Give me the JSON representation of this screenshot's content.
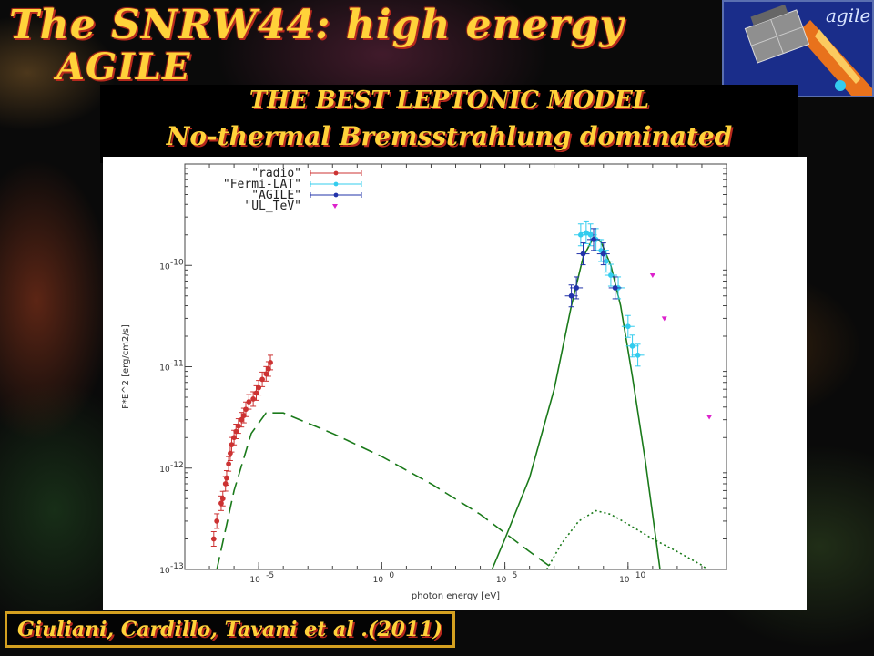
{
  "title": {
    "line1": "The SNRW44: high energy",
    "line2": "AGILE"
  },
  "subtitle": {
    "line1": "THE BEST LEPTONIC MODEL",
    "line2": "No-thermal Bremsstrahlung dominated"
  },
  "citation": "Giuliani, Cardillo, Tavani et al .(2011)",
  "colors": {
    "radio": "#cc3333",
    "fermi": "#33ccee",
    "agile": "#2233aa",
    "ul": "#dd22cc",
    "model": "#1a7a1a"
  },
  "chart_data": {
    "type": "scatter",
    "xlabel": "photon energy [eV]",
    "ylabel": "F*E^2 [erg/cm2/s]",
    "xscale": "log",
    "yscale": "log",
    "xlim": [
      1e-08,
      100000000000000.0
    ],
    "ylim": [
      1e-13,
      1e-09
    ],
    "x_ticks": [
      {
        "v": 1e-05,
        "t": "10"
      },
      {
        "v": 1,
        "t": "10"
      },
      {
        "v": 100000.0,
        "t": "10"
      },
      {
        "v": 10000000000.0,
        "t": "10"
      }
    ],
    "x_tick_exp": [
      "-5",
      "0",
      "5",
      "10"
    ],
    "y_ticks": [
      {
        "v": 1e-13,
        "t": "10"
      },
      {
        "v": 1e-12,
        "t": "10"
      },
      {
        "v": 1e-11,
        "t": "10"
      },
      {
        "v": 1e-10,
        "t": "10"
      }
    ],
    "y_tick_exp": [
      "-13",
      "-12",
      "-11",
      "-10"
    ],
    "legend": [
      "\"radio\"",
      "\"Fermi-LAT\"",
      "\"AGILE\"",
      "\"UL_TeV\""
    ],
    "legend_position": "top-left",
    "series": [
      {
        "name": "\"radio\"",
        "color": "#cc3333",
        "marker": "circle",
        "points": [
          [
            1.5e-07,
            2e-13
          ],
          [
            2e-07,
            3e-13
          ],
          [
            3e-07,
            4.5e-13
          ],
          [
            3.5e-07,
            5e-13
          ],
          [
            4.5e-07,
            7e-13
          ],
          [
            5e-07,
            8e-13
          ],
          [
            6e-07,
            1.1e-12
          ],
          [
            7e-07,
            1.4e-12
          ],
          [
            8e-07,
            1.7e-12
          ],
          [
            1e-06,
            2e-12
          ],
          [
            1.2e-06,
            2.3e-12
          ],
          [
            1.5e-06,
            2.6e-12
          ],
          [
            2e-06,
            3e-12
          ],
          [
            2.5e-06,
            3.3e-12
          ],
          [
            3e-06,
            3.8e-12
          ],
          [
            4e-06,
            4.5e-12
          ],
          [
            6e-06,
            4.8e-12
          ],
          [
            8e-06,
            5.5e-12
          ],
          [
            1e-05,
            6.2e-12
          ],
          [
            1.4e-05,
            7.5e-12
          ],
          [
            2e-05,
            8.5e-12
          ],
          [
            2.5e-05,
            9.5e-12
          ],
          [
            3e-05,
            1.1e-11
          ]
        ]
      },
      {
        "name": "\"Fermi-LAT\"",
        "color": "#33ccee",
        "marker": "square",
        "points": [
          [
            120000000.0,
            2e-10
          ],
          [
            200000000.0,
            2.1e-10
          ],
          [
            300000000.0,
            2e-10
          ],
          [
            500000000.0,
            1.8e-10
          ],
          [
            800000000.0,
            1.4e-10
          ],
          [
            1300000000.0,
            1.1e-10
          ],
          [
            2000000000.0,
            8e-11
          ],
          [
            4000000000.0,
            6e-11
          ],
          [
            10000000000.0,
            2.5e-11
          ],
          [
            15000000000.0,
            1.6e-11
          ],
          [
            25000000000.0,
            1.3e-11
          ]
        ]
      },
      {
        "name": "\"AGILE\"",
        "color": "#2233aa",
        "marker": "circle",
        "points": [
          [
            50000000.0,
            5e-11
          ],
          [
            80000000.0,
            6e-11
          ],
          [
            150000000.0,
            1.3e-10
          ],
          [
            400000000.0,
            1.8e-10
          ],
          [
            1000000000.0,
            1.3e-10
          ],
          [
            3000000000.0,
            6e-11
          ]
        ]
      },
      {
        "name": "\"UL_TeV\"",
        "color": "#dd22cc",
        "marker": "triangle-down",
        "points": [
          [
            100000000000.0,
            8e-11
          ],
          [
            300000000000.0,
            3e-11
          ],
          [
            20000000000000.0,
            3.2e-12
          ]
        ]
      }
    ],
    "models": [
      {
        "style": "solid",
        "points": [
          [
            30000.0,
            1e-13
          ],
          [
            100000.0,
            2e-13
          ],
          [
            1000000.0,
            8e-13
          ],
          [
            10000000.0,
            6e-12
          ],
          [
            50000000.0,
            4e-11
          ],
          [
            150000000.0,
            1.2e-10
          ],
          [
            400000000.0,
            1.9e-10
          ],
          [
            800000000.0,
            1.7e-10
          ],
          [
            2000000000.0,
            1e-10
          ],
          [
            5000000000.0,
            4e-11
          ],
          [
            15000000000.0,
            8e-12
          ],
          [
            50000000000.0,
            1.2e-12
          ],
          [
            200000000000.0,
            1e-13
          ]
        ]
      },
      {
        "style": "dashed",
        "points": [
          [
            2e-07,
            1e-13
          ],
          [
            1e-06,
            6e-13
          ],
          [
            5e-06,
            2.2e-12
          ],
          [
            2e-05,
            3.5e-12
          ],
          [
            0.0001,
            3.5e-12
          ],
          [
            0.01,
            2.2e-12
          ],
          [
            1,
            1.3e-12
          ],
          [
            100.0,
            7e-13
          ],
          [
            10000.0,
            3.5e-13
          ],
          [
            1000000.0,
            1.5e-13
          ],
          [
            10000000.0,
            1e-13
          ]
        ]
      },
      {
        "style": "dotted",
        "points": [
          [
            5000000.0,
            1e-13
          ],
          [
            20000000.0,
            1.8e-13
          ],
          [
            100000000.0,
            3e-13
          ],
          [
            500000000.0,
            3.8e-13
          ],
          [
            2000000000.0,
            3.5e-13
          ],
          [
            10000000000.0,
            2.8e-13
          ],
          [
            100000000000.0,
            2e-13
          ],
          [
            1000000000000.0,
            1.5e-13
          ],
          [
            10000000000000.0,
            1.1e-13
          ],
          [
            30000000000000.0,
            9e-14
          ]
        ]
      }
    ]
  }
}
